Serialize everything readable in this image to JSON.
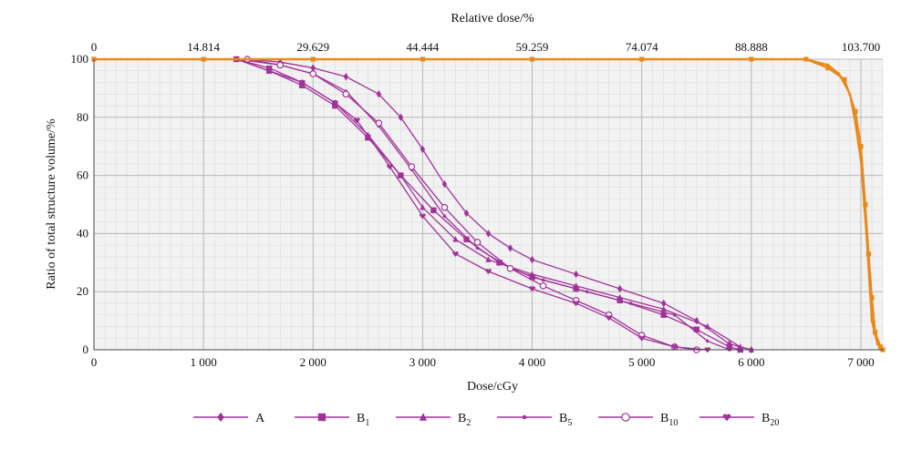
{
  "chart_data": {
    "type": "line",
    "title": "",
    "top_axis_label": "Relative dose/%",
    "xlabel": "Dose/cGy",
    "ylabel": "Ratio of total structure volume/%",
    "xlim": [
      0,
      7200
    ],
    "ylim": [
      0,
      100
    ],
    "x_tick_values": [
      0,
      1000,
      2000,
      3000,
      4000,
      5000,
      6000,
      7000
    ],
    "x_ticks": [
      "0",
      "1 000",
      "2 000",
      "3 000",
      "4 000",
      "5 000",
      "6 000",
      "7 000"
    ],
    "y_tick_values": [
      0,
      20,
      40,
      60,
      80,
      100
    ],
    "y_ticks": [
      "0",
      "20",
      "40",
      "60",
      "80",
      "100"
    ],
    "top_tick_values": [
      0,
      1000,
      2000,
      3000,
      4000,
      5000,
      6000,
      7000
    ],
    "top_ticks": [
      "0",
      "14.814",
      "29.629",
      "44.444",
      "59.259",
      "74.074",
      "88.888",
      "103.700"
    ],
    "grid": true,
    "legend_position": "bottom",
    "colors": {
      "oar": "#a0329a",
      "target": "#e8891a",
      "grid_major": "#b8b8b8",
      "grid_minor": "#dcdcdc",
      "plot_bg": "#f2f2f2"
    },
    "series": [
      {
        "name": "A",
        "marker": "diamond",
        "color": "#a0329a",
        "x": [
          0,
          1400,
          1700,
          2000,
          2300,
          2600,
          2800,
          3000,
          3200,
          3400,
          3600,
          3800,
          4000,
          4400,
          4800,
          5200,
          5500,
          5800,
          6000
        ],
        "y": [
          100,
          100,
          99,
          97,
          94,
          88,
          80,
          69,
          57,
          47,
          40,
          35,
          31,
          26,
          21,
          16,
          10,
          2,
          0
        ]
      },
      {
        "name": "B1",
        "marker": "square",
        "color": "#a0329a",
        "x": [
          0,
          1300,
          1600,
          1900,
          2200,
          2500,
          2800,
          3100,
          3400,
          3700,
          4000,
          4400,
          4800,
          5200,
          5500,
          5800,
          5900
        ],
        "y": [
          100,
          100,
          96,
          91,
          84,
          73,
          60,
          48,
          38,
          30,
          25,
          21,
          17,
          12,
          7,
          1,
          0
        ]
      },
      {
        "name": "B2",
        "marker": "triangle",
        "color": "#a0329a",
        "x": [
          0,
          1300,
          1600,
          1900,
          2200,
          2500,
          2800,
          3000,
          3300,
          3600,
          4000,
          4400,
          4800,
          5200,
          5600,
          5900,
          6000
        ],
        "y": [
          100,
          100,
          96,
          92,
          85,
          74,
          60,
          49,
          38,
          31,
          26,
          22,
          18,
          14,
          8,
          1,
          0
        ]
      },
      {
        "name": "B5",
        "marker": "dot",
        "color": "#a0329a",
        "x": [
          0,
          1300,
          1700,
          2000,
          2300,
          2600,
          2900,
          3200,
          3500,
          3800,
          4100,
          4500,
          4900,
          5300,
          5600,
          5800
        ],
        "y": [
          100,
          100,
          98,
          95,
          89,
          77,
          62,
          46,
          35,
          28,
          24,
          20,
          16,
          12,
          3,
          0
        ]
      },
      {
        "name": "B10",
        "marker": "open-circle",
        "color": "#a0329a",
        "x": [
          0,
          1400,
          1700,
          2000,
          2300,
          2600,
          2900,
          3200,
          3500,
          3800,
          4100,
          4400,
          4700,
          5000,
          5300,
          5500
        ],
        "y": [
          100,
          100,
          98,
          95,
          88,
          78,
          63,
          49,
          37,
          28,
          22,
          17,
          12,
          5,
          1,
          0
        ]
      },
      {
        "name": "B20",
        "marker": "heart",
        "color": "#a0329a",
        "x": [
          0,
          1300,
          1600,
          1900,
          2200,
          2400,
          2700,
          3000,
          3300,
          3600,
          4000,
          4400,
          4700,
          5000,
          5300,
          5600
        ],
        "y": [
          100,
          100,
          97,
          92,
          85,
          79,
          63,
          46,
          33,
          27,
          21,
          16,
          11,
          4,
          1,
          0
        ]
      },
      {
        "name": "",
        "marker": "dot",
        "color": "#e8891a",
        "x": [
          0,
          1000,
          2000,
          3000,
          4000,
          5000,
          6000,
          6500,
          6700,
          6800,
          6900,
          6950,
          7000,
          7050,
          7080,
          7100,
          7150,
          7200
        ],
        "y": [
          100,
          100,
          100,
          100,
          100,
          100,
          100,
          100,
          98,
          95,
          88,
          78,
          65,
          40,
          22,
          10,
          2,
          0
        ]
      },
      {
        "name": "",
        "marker": "square",
        "color": "#e8891a",
        "x": [
          0,
          1000,
          2000,
          3000,
          4000,
          5000,
          6000,
          6500,
          6700,
          6850,
          6950,
          7000,
          7040,
          7070,
          7100,
          7130,
          7180,
          7200
        ],
        "y": [
          100,
          100,
          100,
          100,
          100,
          100,
          100,
          100,
          97,
          93,
          82,
          70,
          50,
          33,
          18,
          6,
          1,
          0
        ]
      }
    ]
  },
  "legend": {
    "items": [
      {
        "label": "A",
        "sub": "",
        "marker": "diamond"
      },
      {
        "label": "B",
        "sub": "1",
        "marker": "square"
      },
      {
        "label": "B",
        "sub": "2",
        "marker": "triangle"
      },
      {
        "label": "B",
        "sub": "5",
        "marker": "dot"
      },
      {
        "label": "B",
        "sub": "10",
        "marker": "open-circle"
      },
      {
        "label": "B",
        "sub": "20",
        "marker": "heart"
      }
    ]
  }
}
